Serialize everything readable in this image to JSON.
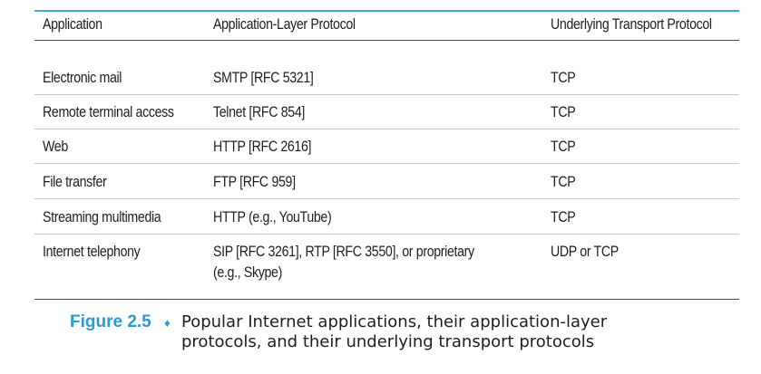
{
  "table": {
    "headers": [
      "Application",
      "Application-Layer Protocol",
      "Underlying Transport Protocol"
    ],
    "rows": [
      {
        "application": "Electronic mail",
        "protocol": "SMTP [RFC 5321]",
        "protocol_line2": "",
        "transport": "TCP"
      },
      {
        "application": "Remote terminal access",
        "protocol": "Telnet [RFC 854]",
        "protocol_line2": "",
        "transport": "TCP"
      },
      {
        "application": "Web",
        "protocol": "HTTP [RFC 2616]",
        "protocol_line2": "",
        "transport": "TCP"
      },
      {
        "application": "File transfer",
        "protocol": "FTP [RFC 959]",
        "protocol_line2": "",
        "transport": "TCP"
      },
      {
        "application": "Streaming multimedia",
        "protocol": "HTTP (e.g., YouTube)",
        "protocol_line2": "",
        "transport": "TCP"
      },
      {
        "application": "Internet telephony",
        "protocol": "SIP [RFC 3261], RTP [RFC 3550], or proprietary",
        "protocol_line2": "(e.g., Skype)",
        "transport": "UDP or TCP"
      }
    ]
  },
  "caption": {
    "label": "Figure 2.5",
    "separator": "♦",
    "line1": "Popular Internet applications, their application-layer",
    "line2": "protocols, and their underlying transport protocols"
  },
  "colors": {
    "accent": "#2a9ad6",
    "rule_top": "#3fa9d6",
    "text": "#1e1e1e"
  }
}
